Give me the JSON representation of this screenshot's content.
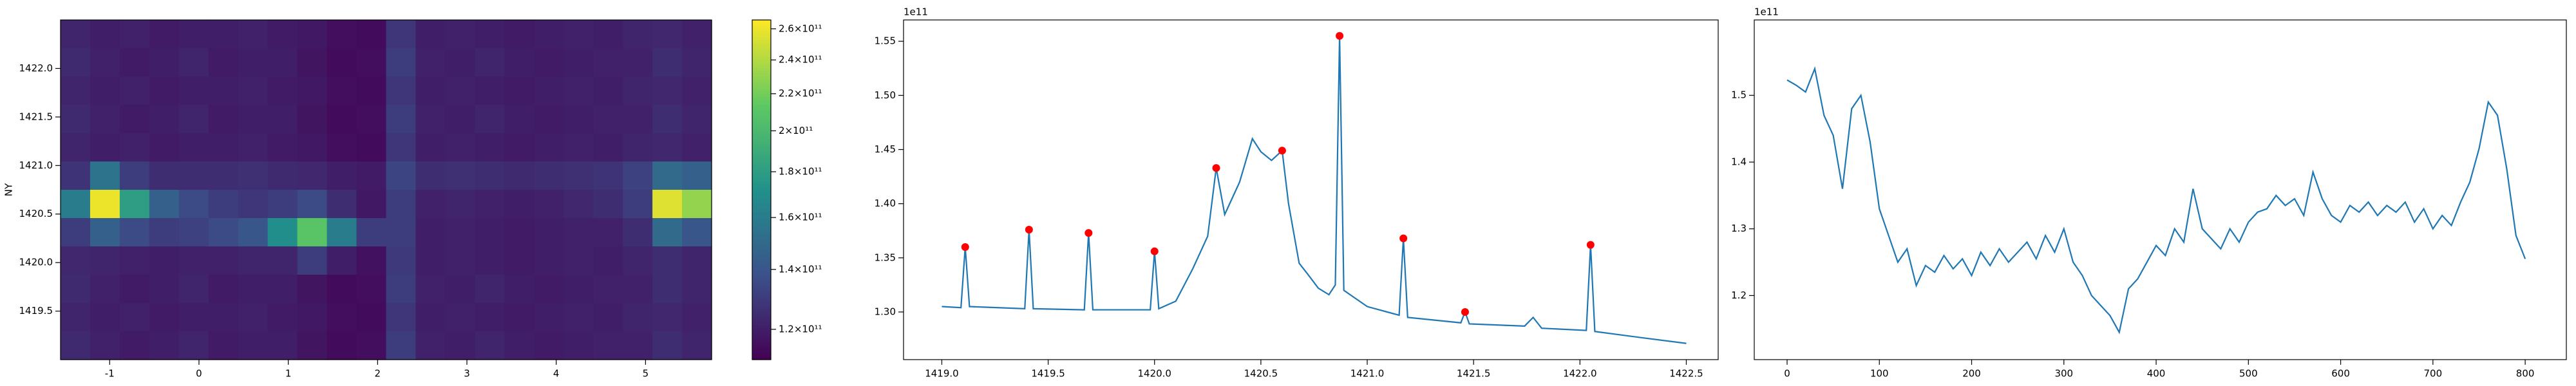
{
  "chart_data": [
    {
      "type": "heatmap",
      "ylabel": "NY",
      "colormap": "viridis",
      "colorscale": "log",
      "xlim": [
        -1.55,
        5.74
      ],
      "ylim": [
        1419.0,
        1422.5
      ],
      "xticks": [
        -1,
        0,
        1,
        2,
        3,
        4,
        5
      ],
      "yticks": [
        1419.5,
        {
          "value": 1420.0,
          "label": "1420.0"
        },
        1420.5,
        {
          "value": 1421.0,
          "label": "1421.0"
        },
        1421.5,
        {
          "value": 1422.0,
          "label": "1422.0"
        }
      ],
      "clim": [
        111000000000.0,
        266000000000.0
      ],
      "cticks": [
        {
          "value": 120000000000.0,
          "label": "1.2×10¹¹"
        },
        {
          "value": 140000000000.0,
          "label": "1.4×10¹¹"
        },
        {
          "value": 160000000000.0,
          "label": "1.6×10¹¹"
        },
        {
          "value": 180000000000.0,
          "label": "1.8×10¹¹"
        },
        {
          "value": 200000000000.0,
          "label": "2×10¹¹"
        },
        {
          "value": 220000000000.0,
          "label": "2.2×10¹¹"
        },
        {
          "value": 240000000000.0,
          "label": "2.4×10¹¹"
        },
        {
          "value": 260000000000.0,
          "label": "2.6×10¹¹"
        }
      ],
      "z": [
        [
          122000000000.0,
          120000000000.0,
          121000000000.0,
          119000000000.0,
          120000000000.0,
          120000000000.0,
          121000000000.0,
          119000000000.0,
          118000000000.0,
          115000000000.0,
          114000000000.0,
          128000000000.0,
          120000000000.0,
          121000000000.0,
          120000000000.0,
          119000000000.0,
          120000000000.0,
          121000000000.0,
          120000000000.0,
          122000000000.0,
          123000000000.0,
          121000000000.0
        ],
        [
          124000000000.0,
          121000000000.0,
          119000000000.0,
          120000000000.0,
          122000000000.0,
          119000000000.0,
          120000000000.0,
          120000000000.0,
          117000000000.0,
          114000000000.0,
          115000000000.0,
          130000000000.0,
          121000000000.0,
          120000000000.0,
          122000000000.0,
          120000000000.0,
          119000000000.0,
          120000000000.0,
          121000000000.0,
          121000000000.0,
          125000000000.0,
          122000000000.0
        ],
        [
          122000000000.0,
          120000000000.0,
          121000000000.0,
          119000000000.0,
          120000000000.0,
          120000000000.0,
          121000000000.0,
          119000000000.0,
          118000000000.0,
          115000000000.0,
          114000000000.0,
          128000000000.0,
          120000000000.0,
          121000000000.0,
          120000000000.0,
          119000000000.0,
          120000000000.0,
          121000000000.0,
          120000000000.0,
          122000000000.0,
          123000000000.0,
          121000000000.0
        ],
        [
          124000000000.0,
          121000000000.0,
          119000000000.0,
          120000000000.0,
          122000000000.0,
          119000000000.0,
          120000000000.0,
          120000000000.0,
          117000000000.0,
          114000000000.0,
          115000000000.0,
          130000000000.0,
          121000000000.0,
          120000000000.0,
          122000000000.0,
          120000000000.0,
          119000000000.0,
          120000000000.0,
          121000000000.0,
          121000000000.0,
          125000000000.0,
          122000000000.0
        ],
        [
          122000000000.0,
          120000000000.0,
          121000000000.0,
          119000000000.0,
          120000000000.0,
          120000000000.0,
          121000000000.0,
          119000000000.0,
          118000000000.0,
          115000000000.0,
          114000000000.0,
          128000000000.0,
          120000000000.0,
          121000000000.0,
          120000000000.0,
          119000000000.0,
          120000000000.0,
          121000000000.0,
          120000000000.0,
          122000000000.0,
          123000000000.0,
          121000000000.0
        ],
        [
          127000000000.0,
          155000000000.0,
          130000000000.0,
          125000000000.0,
          125000000000.0,
          125000000000.0,
          126000000000.0,
          124000000000.0,
          123000000000.0,
          120000000000.0,
          119000000000.0,
          133000000000.0,
          125000000000.0,
          126000000000.0,
          125000000000.0,
          124000000000.0,
          125000000000.0,
          126000000000.0,
          127000000000.0,
          132000000000.0,
          150000000000.0,
          145000000000.0
        ],
        [
          160000000000.0,
          260000000000.0,
          180000000000.0,
          145000000000.0,
          135000000000.0,
          130000000000.0,
          128000000000.0,
          130000000000.0,
          135000000000.0,
          125000000000.0,
          118000000000.0,
          130000000000.0,
          121000000000.0,
          122000000000.0,
          121000000000.0,
          120000000000.0,
          121000000000.0,
          123000000000.0,
          125000000000.0,
          130000000000.0,
          255000000000.0,
          230000000000.0
        ],
        [
          130000000000.0,
          145000000000.0,
          135000000000.0,
          130000000000.0,
          132000000000.0,
          135000000000.0,
          140000000000.0,
          170000000000.0,
          210000000000.0,
          160000000000.0,
          130000000000.0,
          130000000000.0,
          120000000000.0,
          121000000000.0,
          120000000000.0,
          119000000000.0,
          120000000000.0,
          121000000000.0,
          121000000000.0,
          125000000000.0,
          150000000000.0,
          140000000000.0
        ],
        [
          123000000000.0,
          122000000000.0,
          121000000000.0,
          120000000000.0,
          121000000000.0,
          121000000000.0,
          122000000000.0,
          122000000000.0,
          130000000000.0,
          120000000000.0,
          116000000000.0,
          129000000000.0,
          120000000000.0,
          121000000000.0,
          120000000000.0,
          119000000000.0,
          120000000000.0,
          121000000000.0,
          120000000000.0,
          122000000000.0,
          125000000000.0,
          122000000000.0
        ],
        [
          124000000000.0,
          121000000000.0,
          119000000000.0,
          120000000000.0,
          122000000000.0,
          119000000000.0,
          120000000000.0,
          120000000000.0,
          117000000000.0,
          114000000000.0,
          115000000000.0,
          130000000000.0,
          121000000000.0,
          120000000000.0,
          122000000000.0,
          120000000000.0,
          119000000000.0,
          120000000000.0,
          121000000000.0,
          121000000000.0,
          125000000000.0,
          122000000000.0
        ],
        [
          122000000000.0,
          120000000000.0,
          121000000000.0,
          119000000000.0,
          120000000000.0,
          120000000000.0,
          121000000000.0,
          119000000000.0,
          118000000000.0,
          115000000000.0,
          114000000000.0,
          128000000000.0,
          120000000000.0,
          121000000000.0,
          120000000000.0,
          119000000000.0,
          120000000000.0,
          121000000000.0,
          120000000000.0,
          122000000000.0,
          123000000000.0,
          121000000000.0
        ],
        [
          124000000000.0,
          121000000000.0,
          119000000000.0,
          120000000000.0,
          122000000000.0,
          119000000000.0,
          120000000000.0,
          120000000000.0,
          117000000000.0,
          114000000000.0,
          115000000000.0,
          130000000000.0,
          121000000000.0,
          120000000000.0,
          122000000000.0,
          120000000000.0,
          119000000000.0,
          120000000000.0,
          121000000000.0,
          121000000000.0,
          125000000000.0,
          122000000000.0
        ]
      ]
    },
    {
      "type": "line",
      "y_offset": "1e11",
      "color": "#1f77b4",
      "xlim": [
        1418.82,
        1422.65
      ],
      "ylim": [
        1.256,
        1.5697
      ],
      "xticks": [
        {
          "value": 1419.0,
          "label": "1419.0"
        },
        1419.5,
        {
          "value": 1420.0,
          "label": "1420.0"
        },
        1420.5,
        {
          "value": 1421.0,
          "label": "1421.0"
        },
        1421.5,
        {
          "value": 1422.0,
          "label": "1422.0"
        },
        1422.5
      ],
      "yticks": [
        {
          "value": 1.3,
          "label": "1.30"
        },
        1.35,
        {
          "value": 1.4,
          "label": "1.40"
        },
        1.45,
        {
          "value": 1.5,
          "label": "1.50"
        },
        1.55
      ],
      "x": [
        1419.0,
        1419.09,
        1419.11,
        1419.13,
        1419.39,
        1419.41,
        1419.43,
        1419.67,
        1419.69,
        1419.71,
        1419.98,
        1420.0,
        1420.02,
        1420.1,
        1420.18,
        1420.25,
        1420.29,
        1420.33,
        1420.4,
        1420.46,
        1420.5,
        1420.55,
        1420.6,
        1420.63,
        1420.68,
        1420.72,
        1420.77,
        1420.82,
        1420.85,
        1420.87,
        1420.89,
        1421.0,
        1421.15,
        1421.17,
        1421.19,
        1421.44,
        1421.46,
        1421.48,
        1421.74,
        1421.78,
        1421.82,
        1422.03,
        1422.05,
        1422.07,
        1422.3,
        1422.5
      ],
      "values": [
        1.305,
        1.304,
        1.36,
        1.305,
        1.303,
        1.376,
        1.303,
        1.302,
        1.373,
        1.302,
        1.302,
        1.356,
        1.303,
        1.31,
        1.34,
        1.37,
        1.433,
        1.39,
        1.42,
        1.46,
        1.448,
        1.44,
        1.449,
        1.4,
        1.345,
        1.335,
        1.322,
        1.316,
        1.325,
        1.555,
        1.32,
        1.305,
        1.297,
        1.368,
        1.295,
        1.29,
        1.3,
        1.289,
        1.287,
        1.295,
        1.285,
        1.283,
        1.362,
        1.282,
        1.276,
        1.271
      ],
      "peaks": {
        "color": "red",
        "x": [
          1419.11,
          1419.41,
          1419.69,
          1420.0,
          1420.29,
          1420.6,
          1420.87,
          1421.17,
          1421.46,
          1422.05
        ],
        "values": [
          1.36,
          1.376,
          1.373,
          1.356,
          1.433,
          1.449,
          1.555,
          1.368,
          1.3,
          1.362
        ]
      }
    },
    {
      "type": "line",
      "y_offset": "1e11",
      "color": "#1f77b4",
      "xlim": [
        -35.6,
        844.6
      ],
      "ylim": [
        1.104,
        1.613
      ],
      "xticks": [
        0,
        100,
        200,
        300,
        400,
        500,
        600,
        700,
        800
      ],
      "yticks": [
        1.2,
        1.3,
        1.4,
        1.5
      ],
      "x": [
        0,
        10,
        20,
        30,
        40,
        50,
        60,
        70,
        80,
        90,
        100,
        110,
        120,
        130,
        140,
        150,
        160,
        170,
        180,
        190,
        200,
        210,
        220,
        230,
        240,
        250,
        260,
        270,
        280,
        290,
        300,
        310,
        320,
        330,
        340,
        350,
        360,
        370,
        380,
        390,
        400,
        410,
        420,
        430,
        440,
        450,
        460,
        470,
        480,
        490,
        500,
        510,
        520,
        530,
        540,
        550,
        560,
        570,
        580,
        590,
        600,
        610,
        620,
        630,
        640,
        650,
        660,
        670,
        680,
        690,
        700,
        710,
        720,
        730,
        740,
        750,
        760,
        770,
        780,
        790,
        800
      ],
      "values": [
        1.523,
        1.515,
        1.505,
        1.54,
        1.47,
        1.44,
        1.36,
        1.48,
        1.5,
        1.43,
        1.33,
        1.29,
        1.25,
        1.27,
        1.215,
        1.245,
        1.235,
        1.26,
        1.24,
        1.255,
        1.23,
        1.265,
        1.245,
        1.27,
        1.25,
        1.265,
        1.28,
        1.255,
        1.29,
        1.265,
        1.3,
        1.25,
        1.23,
        1.2,
        1.185,
        1.17,
        1.145,
        1.21,
        1.225,
        1.25,
        1.275,
        1.26,
        1.3,
        1.28,
        1.36,
        1.3,
        1.285,
        1.27,
        1.3,
        1.28,
        1.31,
        1.325,
        1.33,
        1.35,
        1.335,
        1.345,
        1.32,
        1.385,
        1.345,
        1.32,
        1.31,
        1.335,
        1.325,
        1.34,
        1.32,
        1.335,
        1.325,
        1.34,
        1.31,
        1.33,
        1.3,
        1.32,
        1.305,
        1.34,
        1.37,
        1.42,
        1.49,
        1.47,
        1.39,
        1.29,
        1.255
      ]
    }
  ]
}
